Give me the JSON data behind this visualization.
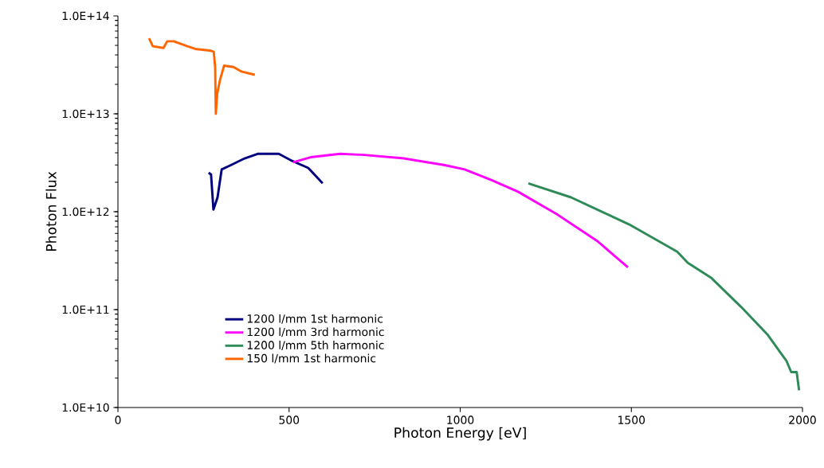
{
  "chart_data": {
    "type": "line",
    "xlabel": "Photon Energy [eV]",
    "ylabel": "Photon Flux",
    "log": "y",
    "grid": false,
    "legend": "bottom left",
    "marker": "none",
    "line_style": "solid",
    "xlim": [
      0,
      2000
    ],
    "xticks": [
      0,
      500,
      1000,
      1500,
      2000
    ],
    "ylim": [
      10000000000.0,
      100000000000000.0
    ],
    "yticks": [
      {
        "value": 10000000000.0,
        "label": "1.0E+10"
      },
      {
        "value": 100000000000.0,
        "label": "1.0E+11"
      },
      {
        "value": 1000000000000.0,
        "label": "1.0E+12"
      },
      {
        "value": 10000000000000.0,
        "label": "1.0E+13"
      },
      {
        "value": 100000000000000.0,
        "label": "1.0E+14"
      }
    ],
    "series": [
      {
        "name": "1200 l/mm 1st harmonic",
        "color": "#000080",
        "x": [
          265,
          272,
          279,
          291,
          303,
          331,
          370,
          408,
          470,
          509,
          556,
          598
        ],
        "values": [
          2500000000000.0,
          2400000000000.0,
          1050000000000.0,
          1400000000000.0,
          2700000000000.0,
          3000000000000.0,
          3500000000000.0,
          3900000000000.0,
          3900000000000.0,
          3300000000000.0,
          2800000000000.0,
          1950000000000.0
        ]
      },
      {
        "name": "1200 l/mm 3rd harmonic",
        "color": "#ff00ff",
        "x": [
          512,
          563,
          649,
          719,
          836,
          952,
          1013,
          1092,
          1169,
          1285,
          1401,
          1490
        ],
        "values": [
          3200000000000.0,
          3600000000000.0,
          3900000000000.0,
          3800000000000.0,
          3500000000000.0,
          3000000000000.0,
          2700000000000.0,
          2100000000000.0,
          1600000000000.0,
          930000000000.0,
          500000000000.0,
          270000000000.0
        ]
      },
      {
        "name": "1200 l/mm 5th harmonic",
        "color": "#2e8b57",
        "x": [
          1199,
          1324,
          1494,
          1634,
          1665,
          1734,
          1820,
          1897,
          1953,
          1967,
          1983,
          1990
        ],
        "values": [
          1950000000000.0,
          1400000000000.0,
          740000000000.0,
          390000000000.0,
          300000000000.0,
          210000000000.0,
          107000000000.0,
          56000000000.0,
          30000000000.0,
          23000000000.0,
          23000000000.0,
          15000000000.0
        ]
      },
      {
        "name": "150 l/mm 1st harmonic",
        "color": "#ff6600",
        "x": [
          91,
          102,
          133,
          144,
          163,
          203,
          226,
          272,
          280,
          284,
          286,
          290,
          298,
          310,
          338,
          361,
          400
        ],
        "values": [
          59000000000000.0,
          49000000000000.0,
          47000000000000.0,
          55000000000000.0,
          55000000000000.0,
          49000000000000.0,
          46000000000000.0,
          44000000000000.0,
          43000000000000.0,
          30000000000000.0,
          10000000000000.0,
          16000000000000.0,
          22000000000000.0,
          31000000000000.0,
          30000000000000.0,
          27000000000000.0,
          25000000000000.0
        ]
      }
    ]
  }
}
